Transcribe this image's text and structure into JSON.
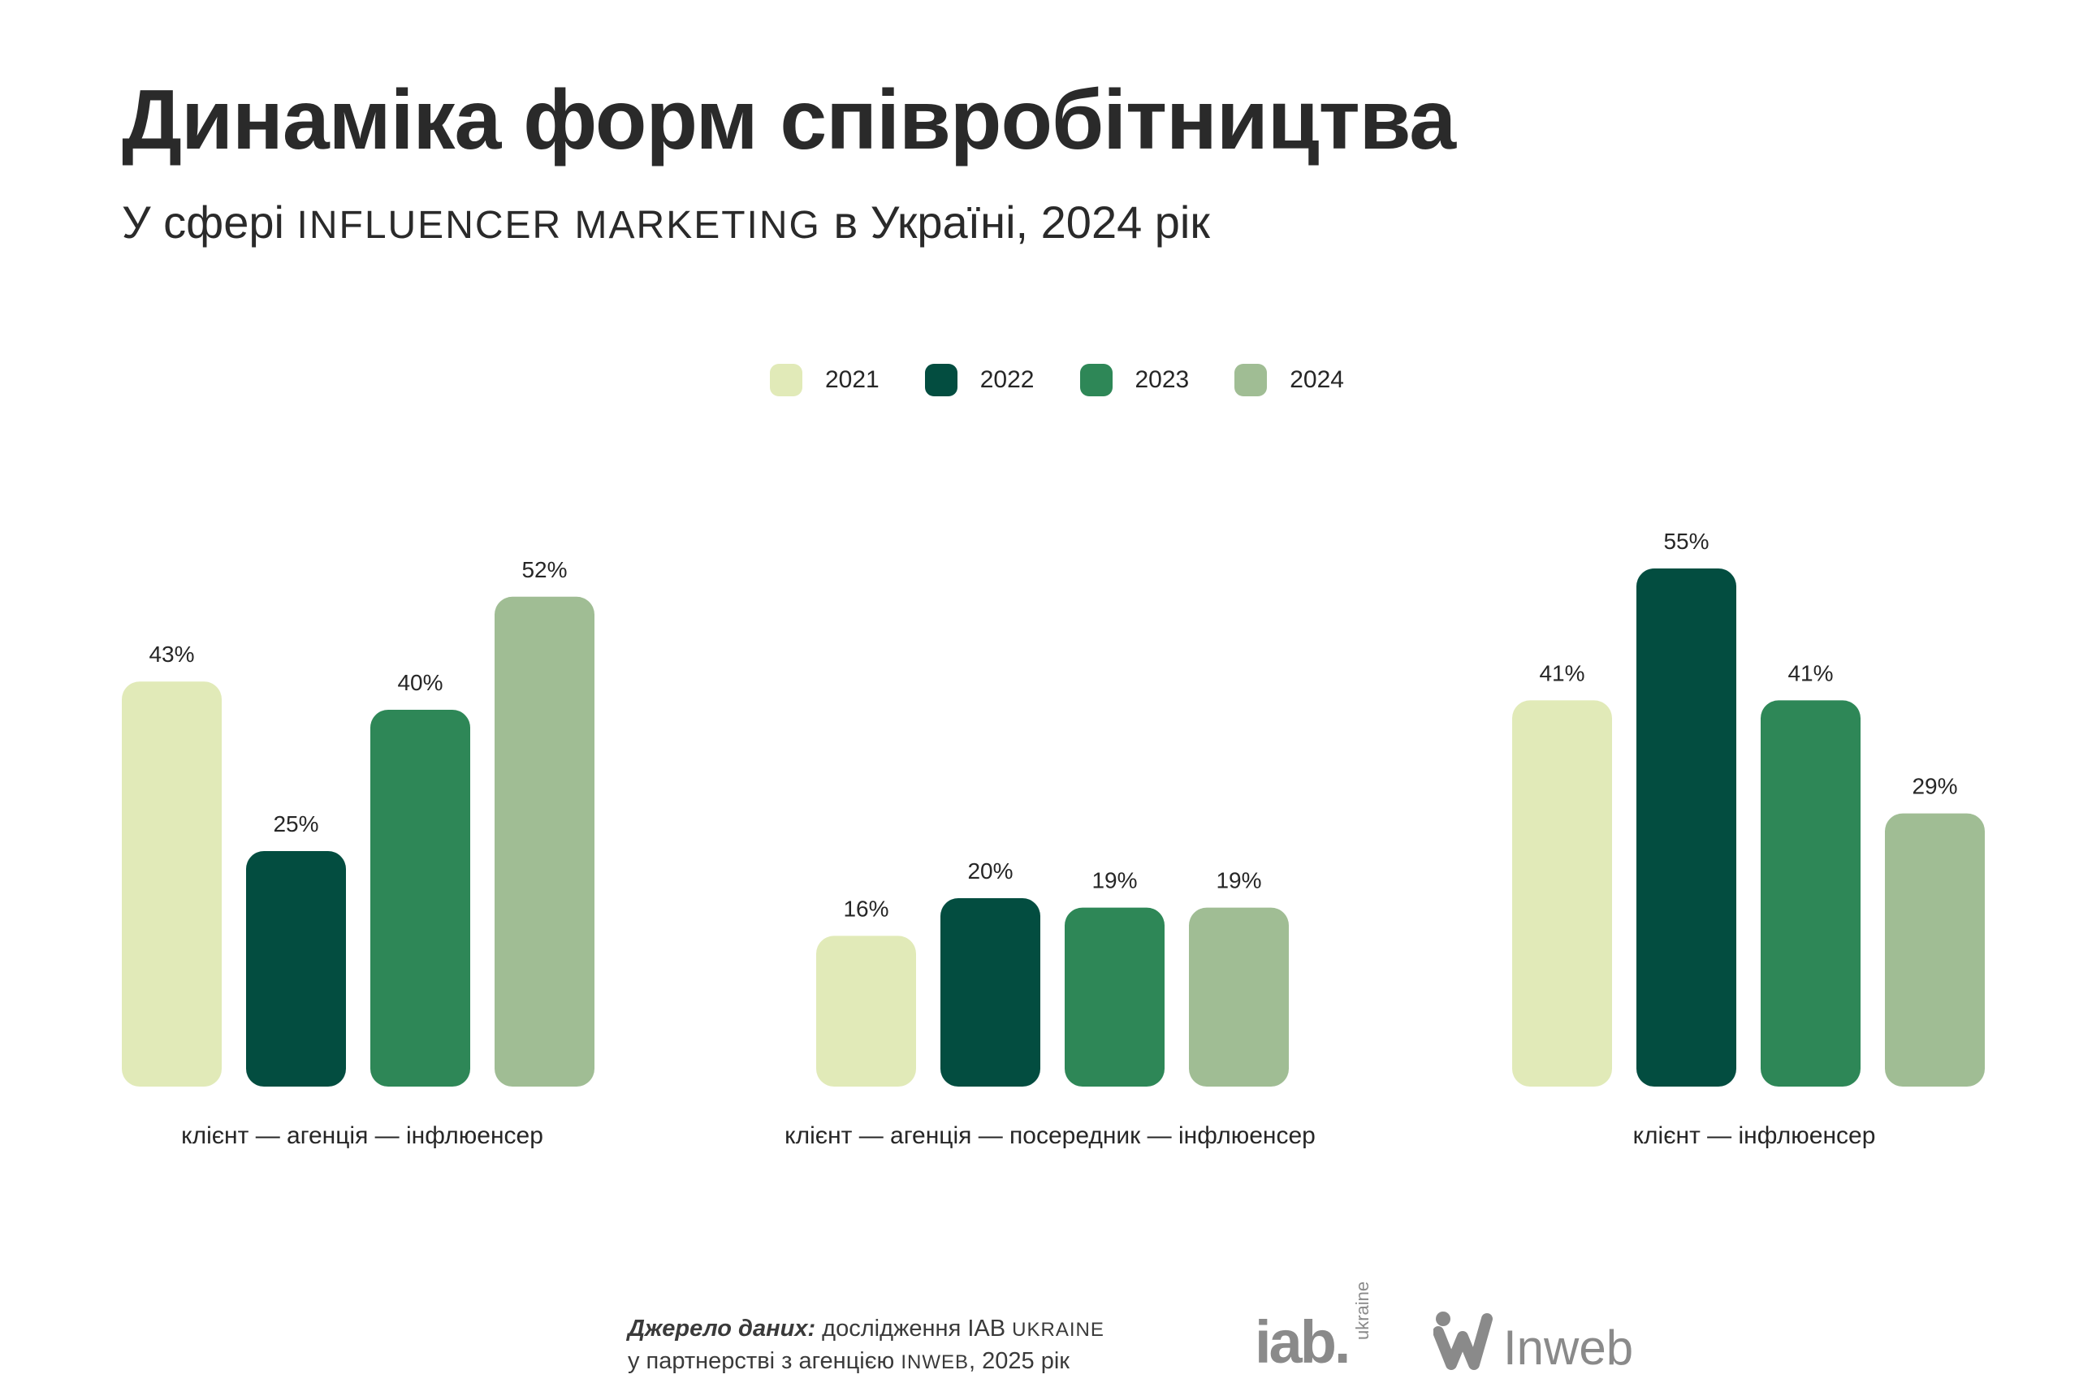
{
  "header": {
    "title": "Динаміка форм співробітництва",
    "subtitle_pre": "У сфері ",
    "subtitle_caps": "INFLUENCER MARKETING",
    "subtitle_post": " в Україні, 2024 рік"
  },
  "legend": [
    {
      "label": "2021",
      "color": "#e1eab8"
    },
    {
      "label": "2022",
      "color": "#034d40"
    },
    {
      "label": "2023",
      "color": "#2e8757"
    },
    {
      "label": "2024",
      "color": "#a0bd94"
    }
  ],
  "chart_data": {
    "type": "bar",
    "categories": [
      "клієнт — агенція — інфлюенсер",
      "клієнт — агенція — посередник — інфлюенсер",
      "клієнт — інфлюенсер"
    ],
    "series": [
      {
        "name": "2021",
        "values": [
          43,
          16,
          41
        ],
        "labels": [
          "43%",
          "16%",
          "41%"
        ]
      },
      {
        "name": "2022",
        "values": [
          25,
          20,
          55
        ],
        "labels": [
          "25%",
          "20%",
          "55%"
        ]
      },
      {
        "name": "2023",
        "values": [
          40,
          19,
          41
        ],
        "labels": [
          "40%",
          "19%",
          "41%"
        ]
      },
      {
        "name": "2024",
        "values": [
          52,
          19,
          29
        ],
        "labels": [
          "52%",
          "19%",
          "29%"
        ]
      }
    ],
    "unit": "%",
    "grid": false,
    "legend_position": "top-center"
  },
  "footer": {
    "source_label": "Джерело даних:",
    "source_line1_pre": " дослідження IAB ",
    "source_line1_caps": "UKRAINE",
    "source_line2_pre": "у партнерстві з агенцією ",
    "source_line2_caps": "INWEB",
    "source_line2_post": ", 2025 рік",
    "logo_iab_text": "iab.",
    "logo_iab_sub": "ukraine",
    "logo_inweb_text": "Inweb"
  }
}
